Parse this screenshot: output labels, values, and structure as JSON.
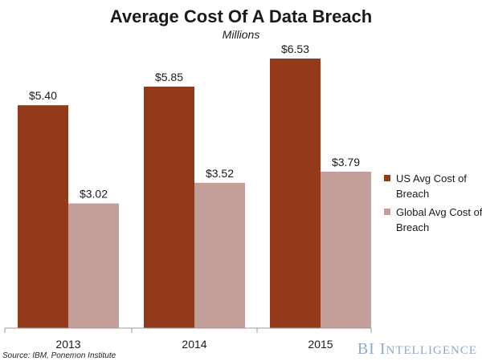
{
  "chart_data": {
    "type": "bar",
    "title": "Average Cost Of A Data Breach",
    "subtitle": "Millions",
    "categories": [
      "2013",
      "2014",
      "2015"
    ],
    "series": [
      {
        "name": "US Avg Cost of Breach",
        "legend_lines": [
          "US Avg Cost of",
          "Breach"
        ],
        "color": "#933a1b",
        "values": [
          5.4,
          5.85,
          6.53
        ],
        "labels": [
          "$5.40",
          "$5.85",
          "$6.53"
        ]
      },
      {
        "name": "Global Avg Cost of Breach",
        "legend_lines": [
          "Global Avg Cost of",
          "Breach"
        ],
        "color": "#c49f99",
        "values": [
          3.02,
          3.52,
          3.79
        ],
        "labels": [
          "$3.02",
          "$3.52",
          "$3.79"
        ]
      }
    ],
    "ylim": [
      0,
      7
    ],
    "grid": false,
    "legend": "right"
  },
  "source": "Source: IBM, Ponemon Institute",
  "brand": {
    "big1": "BI",
    "big2": "I",
    "small": "NTELLIGENCE"
  }
}
